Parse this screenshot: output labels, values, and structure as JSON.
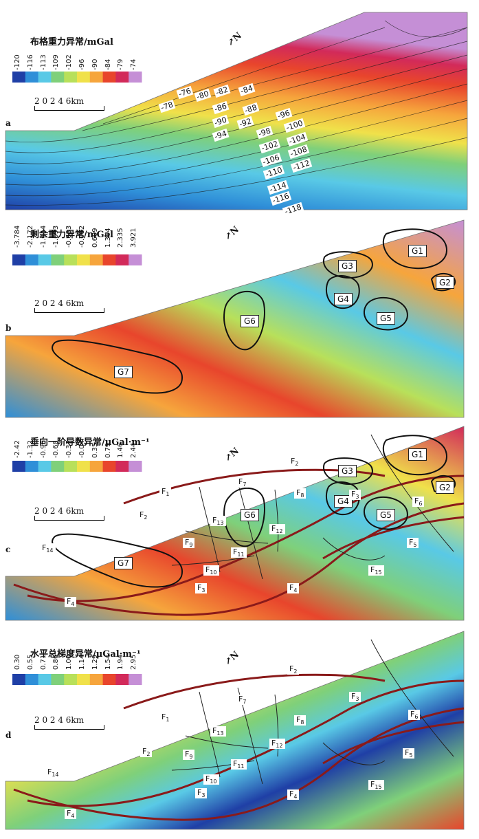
{
  "panels": {
    "a": {
      "letter": "a",
      "title": "布格重力异常/mGal",
      "ticks": [
        "-120",
        "-116",
        "-113",
        "-109",
        "-102",
        "-96",
        "-90",
        "-84",
        "-79",
        "-74"
      ],
      "scale": "2 0 2 4 6km",
      "north": "N",
      "contour_labels": [
        "-76",
        "-78",
        "-80",
        "-82",
        "-84",
        "-86",
        "-88",
        "-90",
        "-92",
        "-94",
        "-96",
        "-98",
        "-100",
        "-102",
        "-104",
        "-106",
        "-108",
        "-110",
        "-112",
        "-114",
        "-116",
        "-118"
      ]
    },
    "b": {
      "letter": "b",
      "title": "剩余重力异常/mGal",
      "ticks": [
        "-3.784",
        "-2.172",
        "-1.544",
        "-1.093",
        "-0.633",
        "-0.082",
        "0.609",
        "1.304",
        "2.335",
        "3.921"
      ],
      "scale": "2 0 2 4 6km",
      "north": "N",
      "anomalies": [
        "G1",
        "G2",
        "G3",
        "G4",
        "G5",
        "G6",
        "G7"
      ]
    },
    "c": {
      "letter": "c",
      "title": "垂向一阶导数异常/μGal·m⁻¹",
      "ticks": [
        "-2.42",
        "-1.32",
        "-0.96",
        "-0.68",
        "-0.37",
        "-0.04",
        "0.35",
        "0.79",
        "1.46",
        "2.44"
      ],
      "scale": "2 0 2 4 6km",
      "north": "N",
      "anomalies": [
        "G1",
        "G2",
        "G3",
        "G4",
        "G5",
        "G6",
        "G7"
      ],
      "faults": [
        "F1",
        "F2",
        "F3",
        "F4",
        "F5",
        "F6",
        "F7",
        "F8",
        "F9",
        "F10",
        "F11",
        "F12",
        "F13",
        "F14",
        "F15"
      ]
    },
    "d": {
      "letter": "d",
      "title": "水平总梯度异常/μGal·m⁻¹",
      "ticks": [
        "0.30",
        "0.55",
        "0.71",
        "0.86",
        "1.00",
        "1.14",
        "1.29",
        "1.54",
        "1.94",
        "2.95"
      ],
      "scale": "2 0 2 4 6km",
      "north": "N",
      "faults": [
        "F1",
        "F2",
        "F3",
        "F4",
        "F5",
        "F6",
        "F7",
        "F8",
        "F9",
        "F10",
        "F11",
        "F12",
        "F13",
        "F14",
        "F15"
      ]
    }
  },
  "colors": {
    "palette": [
      "#1f3fa6",
      "#2f8fd8",
      "#59c9e6",
      "#7fd07a",
      "#b8e05a",
      "#f0e14a",
      "#f6a53c",
      "#e8452c",
      "#d22a5a",
      "#c58fd6"
    ],
    "fault": "#8a1a1a",
    "contour": "#1a1a1a"
  }
}
